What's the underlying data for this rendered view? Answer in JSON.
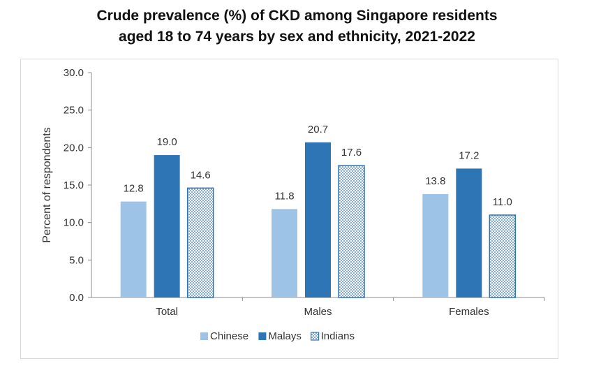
{
  "chart_data": {
    "type": "bar",
    "title_line1": "Crude prevalence (%) of CKD among Singapore residents",
    "title_line2": "aged 18 to 74 years by sex and ethnicity, 2021-2022",
    "ylabel": "Percent of respondents",
    "xlabel": "",
    "ylim": [
      0,
      30
    ],
    "yticks": [
      "0.0",
      "5.0",
      "10.0",
      "15.0",
      "20.0",
      "25.0",
      "30.0"
    ],
    "categories": [
      "Total",
      "Males",
      "Females"
    ],
    "series": [
      {
        "name": "Chinese",
        "values": [
          12.8,
          11.8,
          13.8
        ],
        "labels": [
          "12.8",
          "11.8",
          "13.8"
        ],
        "color": "#9dc3e6",
        "pattern": "solid"
      },
      {
        "name": "Malays",
        "values": [
          19.0,
          20.7,
          17.2
        ],
        "labels": [
          "19.0",
          "20.7",
          "17.2"
        ],
        "color": "#2e75b6",
        "pattern": "solid"
      },
      {
        "name": "Indians",
        "values": [
          14.6,
          17.6,
          11.0
        ],
        "labels": [
          "14.6",
          "17.6",
          "11.0"
        ],
        "color": "#2e75b6",
        "pattern": "dotted"
      }
    ],
    "legend_position": "bottom",
    "grid": false
  }
}
